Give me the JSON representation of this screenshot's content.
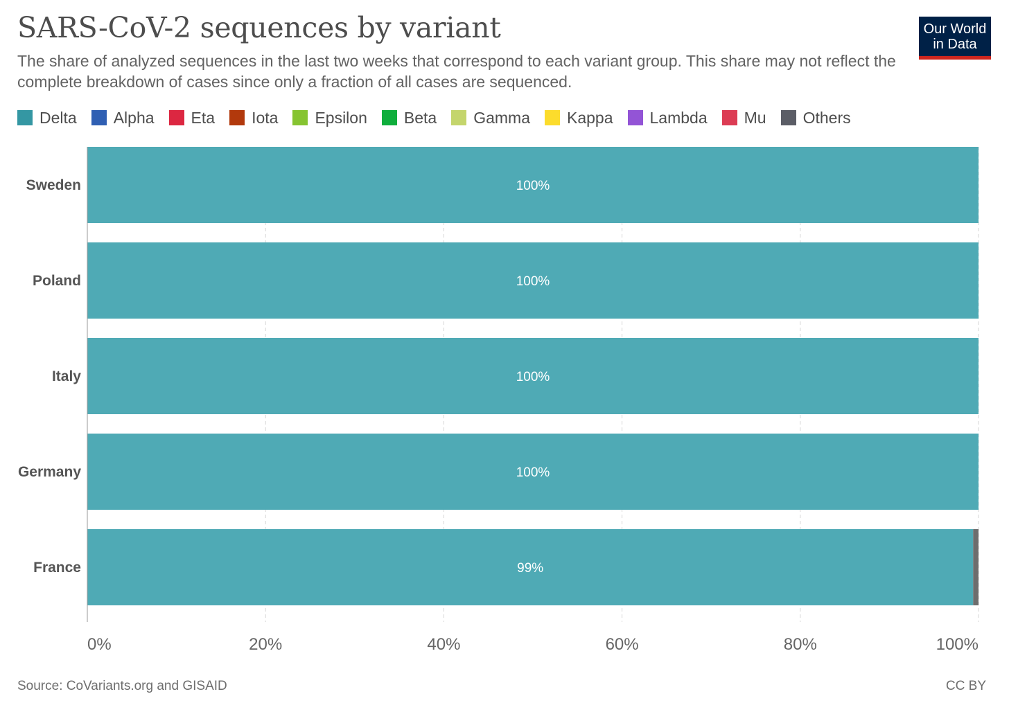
{
  "header": {
    "title": "SARS-CoV-2 sequences by variant",
    "subtitle": "The share of analyzed sequences in the last two weeks that correspond to each variant group. This share may not reflect the complete breakdown of cases since only a fraction of all cases are sequenced.",
    "logo_line1": "Our World",
    "logo_line2": "in Data"
  },
  "legend": [
    {
      "label": "Delta",
      "color": "#3497a3"
    },
    {
      "label": "Alpha",
      "color": "#2f5fb3"
    },
    {
      "label": "Eta",
      "color": "#dc2741"
    },
    {
      "label": "Iota",
      "color": "#b2390c"
    },
    {
      "label": "Epsilon",
      "color": "#86c431"
    },
    {
      "label": "Beta",
      "color": "#0fae3c"
    },
    {
      "label": "Gamma",
      "color": "#c4d56c"
    },
    {
      "label": "Kappa",
      "color": "#fcdc2c"
    },
    {
      "label": "Lambda",
      "color": "#9354d6"
    },
    {
      "label": "Mu",
      "color": "#dc3c54"
    },
    {
      "label": "Others",
      "color": "#5b5d66"
    }
  ],
  "chart_data": {
    "type": "bar",
    "orientation": "horizontal",
    "stacked": true,
    "categories": [
      "Sweden",
      "Poland",
      "Italy",
      "Germany",
      "France"
    ],
    "series": [
      {
        "name": "Delta",
        "color": "#4faab5",
        "values": [
          100,
          100,
          100,
          100,
          99.4
        ]
      },
      {
        "name": "Others",
        "color": "#6d6d6d",
        "values": [
          0,
          0,
          0,
          0,
          0.6
        ]
      }
    ],
    "data_labels": [
      "100%",
      "100%",
      "100%",
      "100%",
      "99%"
    ],
    "x_ticks": [
      "0%",
      "20%",
      "40%",
      "60%",
      "80%",
      "100%"
    ],
    "x_tick_values": [
      0,
      20,
      40,
      60,
      80,
      100
    ],
    "xlim": [
      0,
      100
    ],
    "unit": "%",
    "grid": true
  },
  "footer": {
    "source": "Source: CoVariants.org and GISAID",
    "license": "CC BY"
  }
}
